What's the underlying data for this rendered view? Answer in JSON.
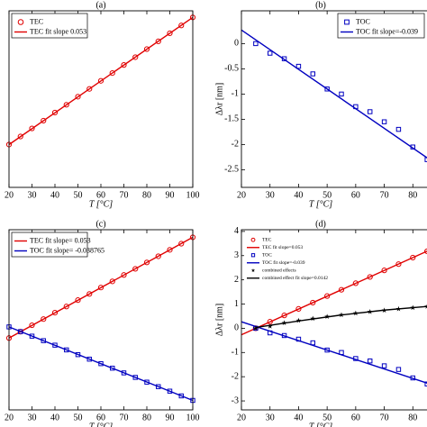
{
  "chart_data": [
    {
      "type": "line",
      "title": "(a)",
      "xlabel": "T [°C]",
      "xlim": [
        20,
        100
      ],
      "xticks": [
        20,
        30,
        40,
        50,
        60,
        70,
        80,
        90,
        100
      ],
      "ylim": [
        -1.7,
        4.2
      ],
      "legend": "upper left",
      "series": [
        {
          "name": "TEC",
          "color": "#e00000",
          "marker": "circle",
          "x": [
            20,
            25,
            30,
            35,
            40,
            45,
            50,
            55,
            60,
            65,
            70,
            75,
            80,
            85,
            90,
            95,
            100
          ],
          "values": [
            -0.27,
            0,
            0.27,
            0.53,
            0.8,
            1.06,
            1.33,
            1.59,
            1.86,
            2.12,
            2.39,
            2.65,
            2.92,
            3.18,
            3.45,
            3.71,
            3.98
          ]
        },
        {
          "name": "TEC fit slope 0.053",
          "color": "#e00000",
          "marker": "line",
          "x": [
            20,
            100
          ],
          "values": [
            -0.27,
            3.98
          ]
        }
      ]
    },
    {
      "type": "line",
      "title": "(b)",
      "xlabel": "T [°C]",
      "ylabel": "Δλr [nm]",
      "xlim": [
        20,
        90
      ],
      "xticks": [
        20,
        30,
        40,
        50,
        60,
        70,
        80
      ],
      "ylim": [
        -2.85,
        0.65
      ],
      "yticks": [
        0,
        -0.5,
        -1,
        -1.5,
        -2,
        -2.5
      ],
      "legend": "upper right",
      "series": [
        {
          "name": "TOC",
          "color": "#0000c0",
          "marker": "square",
          "x": [
            25,
            30,
            35,
            40,
            45,
            50,
            55,
            60,
            65,
            70,
            75,
            80,
            85
          ],
          "values": [
            0,
            -0.19,
            -0.3,
            -0.45,
            -0.6,
            -0.9,
            -1.0,
            -1.25,
            -1.35,
            -1.55,
            -1.7,
            -2.05,
            -2.3
          ]
        },
        {
          "name": "TOC fit slope=-0.039",
          "color": "#0000c0",
          "marker": "line",
          "x": [
            20,
            90
          ],
          "values": [
            0.27,
            -2.46
          ]
        }
      ]
    },
    {
      "type": "line",
      "title": "(c)",
      "xlabel": "T [°C]",
      "xlim": [
        20,
        100
      ],
      "xticks": [
        20,
        30,
        40,
        50,
        60,
        70,
        80,
        90,
        100
      ],
      "ylim": [
        -3.3,
        4.3
      ],
      "legend": "upper left",
      "series": [
        {
          "color": "#e00000",
          "marker": "circle",
          "x": [
            20,
            25,
            30,
            35,
            40,
            45,
            50,
            55,
            60,
            65,
            70,
            75,
            80,
            85,
            90,
            95,
            100
          ],
          "values": [
            -0.27,
            0,
            0.27,
            0.53,
            0.8,
            1.06,
            1.33,
            1.59,
            1.86,
            2.12,
            2.39,
            2.65,
            2.92,
            3.18,
            3.45,
            3.71,
            3.98
          ]
        },
        {
          "name": "TEC fit slope= 0.053",
          "color": "#e00000",
          "marker": "line",
          "x": [
            20,
            100
          ],
          "values": [
            -0.27,
            3.98
          ]
        },
        {
          "color": "#0000c0",
          "marker": "square",
          "x": [
            20,
            25,
            30,
            35,
            40,
            45,
            50,
            55,
            60,
            65,
            70,
            75,
            80,
            85,
            90,
            95,
            100
          ],
          "values": [
            0.2,
            0,
            -0.19,
            -0.38,
            -0.57,
            -0.77,
            -0.97,
            -1.16,
            -1.35,
            -1.54,
            -1.74,
            -1.93,
            -2.13,
            -2.32,
            -2.51,
            -2.71,
            -2.9
          ]
        },
        {
          "name": "TOC fit slope= -0.038765",
          "color": "#0000c0",
          "marker": "line",
          "x": [
            20,
            100
          ],
          "values": [
            0.2,
            -2.9
          ]
        }
      ]
    },
    {
      "type": "line",
      "title": "(d)",
      "xlabel": "T [°C]",
      "ylabel": "Δλr [nm]",
      "xlim": [
        20,
        90
      ],
      "xticks": [
        20,
        30,
        40,
        50,
        60,
        70,
        80
      ],
      "ylim": [
        -3.37,
        4.07
      ],
      "yticks": [
        4,
        3,
        2,
        1,
        0,
        -1,
        -2,
        -3
      ],
      "legend": "upper left",
      "series": [
        {
          "name": "TEC",
          "color": "#e00000",
          "marker": "circle",
          "x": [
            25,
            30,
            35,
            40,
            45,
            50,
            55,
            60,
            65,
            70,
            75,
            80,
            85
          ],
          "values": [
            0,
            0.27,
            0.53,
            0.8,
            1.06,
            1.33,
            1.59,
            1.86,
            2.12,
            2.39,
            2.65,
            2.92,
            3.18
          ]
        },
        {
          "name": "TEC fit slope=0.053",
          "color": "#e00000",
          "marker": "line",
          "x": [
            20,
            90
          ],
          "values": [
            -0.27,
            3.45
          ]
        },
        {
          "name": "TOC",
          "color": "#0000c0",
          "marker": "square",
          "x": [
            25,
            30,
            35,
            40,
            45,
            50,
            55,
            60,
            65,
            70,
            75,
            80,
            85
          ],
          "values": [
            0,
            -0.19,
            -0.3,
            -0.45,
            -0.6,
            -0.9,
            -1.0,
            -1.25,
            -1.35,
            -1.55,
            -1.7,
            -2.05,
            -2.3
          ]
        },
        {
          "name": "TOC fit slope=-0.039",
          "color": "#0000c0",
          "marker": "line",
          "x": [
            20,
            90
          ],
          "values": [
            0.27,
            -2.46
          ]
        },
        {
          "name": "combined effects",
          "color": "#000000",
          "marker": "star",
          "x": [
            25,
            30,
            35,
            40,
            45,
            50,
            55,
            60,
            65,
            70,
            75,
            80,
            85
          ],
          "values": [
            0,
            0.08,
            0.22,
            0.32,
            0.4,
            0.48,
            0.55,
            0.62,
            0.68,
            0.74,
            0.8,
            0.85,
            0.9
          ]
        },
        {
          "name": "combined effect fit slope=0.0142",
          "color": "#000000",
          "marker": "line",
          "x": [
            25,
            40,
            55,
            70,
            90
          ],
          "values": [
            0.03,
            0.3,
            0.55,
            0.75,
            0.95
          ]
        }
      ]
    }
  ]
}
